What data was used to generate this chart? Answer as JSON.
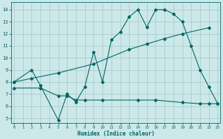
{
  "xlabel": "Humidex (Indice chaleur)",
  "bg_color": "#cce8e8",
  "grid_color": "#aacccc",
  "line_color": "#006666",
  "line1_x": [
    0,
    2,
    3,
    5,
    6,
    7,
    8,
    9,
    10,
    11,
    12,
    13,
    14,
    15,
    16,
    17,
    18,
    19,
    20,
    21,
    22,
    23
  ],
  "line1_y": [
    8.0,
    9.0,
    7.7,
    4.85,
    7.0,
    6.35,
    7.6,
    10.5,
    8.0,
    11.5,
    12.15,
    13.4,
    14.0,
    12.55,
    14.0,
    14.0,
    13.65,
    13.0,
    11.0,
    9.0,
    7.6,
    6.2
  ],
  "line2_x": [
    0,
    2,
    5,
    9,
    13,
    15,
    17,
    19,
    22
  ],
  "line2_y": [
    8.0,
    8.3,
    8.75,
    9.5,
    10.7,
    11.15,
    11.6,
    12.0,
    12.5
  ],
  "line3_x": [
    0,
    3,
    5,
    6,
    7,
    8,
    10,
    14,
    16,
    19,
    21,
    22,
    23
  ],
  "line3_y": [
    7.5,
    7.5,
    6.85,
    6.85,
    6.5,
    6.5,
    6.5,
    6.5,
    6.5,
    6.3,
    6.2,
    6.2,
    6.2
  ],
  "xlim": [
    -0.3,
    23.3
  ],
  "ylim": [
    4.6,
    14.6
  ],
  "yticks": [
    5,
    6,
    7,
    8,
    9,
    10,
    11,
    12,
    13,
    14
  ],
  "xticks": [
    0,
    1,
    2,
    3,
    4,
    5,
    6,
    7,
    8,
    9,
    10,
    11,
    12,
    13,
    14,
    15,
    16,
    17,
    18,
    19,
    20,
    21,
    22,
    23
  ]
}
